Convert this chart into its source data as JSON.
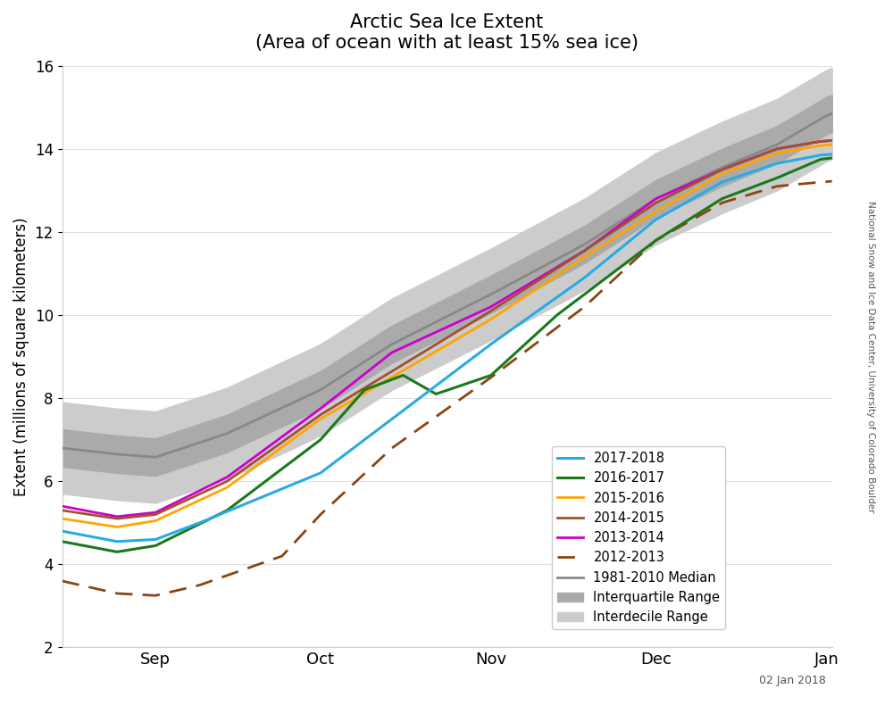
{
  "title_line1": "Arctic Sea Ice Extent",
  "title_line2": "(Area of ocean with at least 15% sea ice)",
  "ylabel": "Extent (millions of square kilometers)",
  "date_label": "02 Jan 2018",
  "credit_text": "National Snow and Ice Data Center, University of Colorado Boulder",
  "ylim": [
    2,
    16
  ],
  "yticks": [
    2,
    4,
    6,
    8,
    10,
    12,
    14,
    16
  ],
  "colors": {
    "2017-2018": "#29ABE2",
    "2016-2017": "#1A7A1A",
    "2015-2016": "#FFA500",
    "2014-2015": "#A0522D",
    "2013-2014": "#CC00CC",
    "2012-2013": "#8B4513",
    "median": "#888888",
    "interquartile": "#AAAAAA",
    "interdecile": "#CCCCCC"
  }
}
